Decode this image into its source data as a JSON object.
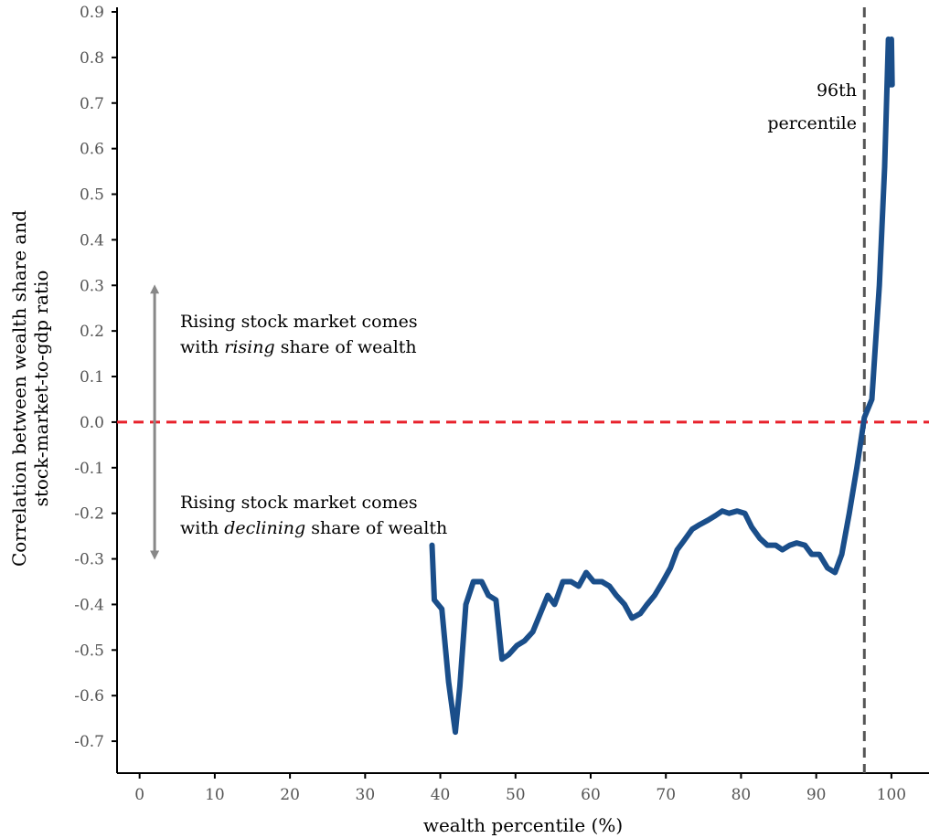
{
  "chart_data": {
    "type": "line",
    "xlabel": "wealth percentile (%)",
    "ylabel_lines": [
      "Correlation between wealth share and",
      "stock-market-to-gdp ratio"
    ],
    "xlim": [
      -3,
      105
    ],
    "ylim": [
      -0.77,
      0.91
    ],
    "x_ticks": [
      0,
      10,
      20,
      30,
      40,
      50,
      60,
      70,
      80,
      90,
      100
    ],
    "y_ticks": [
      0.9,
      0.8,
      0.7,
      0.6,
      0.5,
      0.4,
      0.3,
      0.2,
      0.1,
      0.0,
      -0.1,
      -0.2,
      -0.3,
      -0.4,
      -0.5,
      -0.6,
      -0.7
    ],
    "y_tick_labels": [
      "0.9",
      "0.8",
      "0.7",
      "0.6",
      "0.5",
      "0.4",
      "0.3",
      "0.2",
      "0.1",
      "0.0",
      "-0.1",
      "-0.2",
      "-0.3",
      "-0.4",
      "-0.5",
      "-0.6",
      "-0.7"
    ],
    "series": [
      {
        "color": "#1a4e8a",
        "x": [
          38.9,
          39.2,
          40.2,
          41.1,
          42.0,
          42.6,
          43.4,
          44.4,
          45.5,
          46.4,
          47.4,
          48.2,
          49.1,
          50.2,
          51.2,
          52.3,
          53.3,
          54.3,
          55.2,
          56.3,
          57.4,
          58.4,
          59.4,
          60.4,
          61.5,
          62.5,
          63.4,
          64.5,
          65.5,
          66.6,
          67.5,
          68.5,
          69.6,
          70.6,
          71.5,
          72.4,
          73.5,
          74.5,
          75.6,
          76.6,
          77.5,
          78.4,
          79.5,
          80.5,
          81.4,
          82.5,
          83.5,
          84.6,
          85.5,
          86.5,
          87.4,
          88.5,
          89.4,
          90.4,
          91.5,
          92.5,
          93.4,
          94.4,
          95.4,
          96.4,
          97.4,
          98.4,
          99.1,
          99.6,
          99.8,
          100.0,
          100.1
        ],
        "y": [
          -0.27,
          -0.39,
          -0.41,
          -0.57,
          -0.68,
          -0.58,
          -0.4,
          -0.35,
          -0.35,
          -0.38,
          -0.39,
          -0.52,
          -0.51,
          -0.49,
          -0.48,
          -0.46,
          -0.42,
          -0.38,
          -0.4,
          -0.35,
          -0.35,
          -0.36,
          -0.33,
          -0.35,
          -0.35,
          -0.36,
          -0.38,
          -0.4,
          -0.43,
          -0.42,
          -0.4,
          -0.38,
          -0.35,
          -0.32,
          -0.28,
          -0.26,
          -0.235,
          -0.225,
          -0.215,
          -0.205,
          -0.195,
          -0.2,
          -0.195,
          -0.2,
          -0.23,
          -0.255,
          -0.27,
          -0.27,
          -0.28,
          -0.27,
          -0.265,
          -0.27,
          -0.29,
          -0.29,
          -0.32,
          -0.33,
          -0.29,
          -0.2,
          -0.1,
          0.01,
          0.05,
          0.3,
          0.56,
          0.84,
          0.74,
          0.84,
          0.74
        ]
      }
    ],
    "zero_line": {
      "y": 0.0,
      "color": "#e8212b",
      "style": "dashed"
    },
    "threshold_line": {
      "x": 96.4,
      "color": "#555555",
      "style": "dashed"
    },
    "annotations": {
      "threshold_label": [
        "96th",
        "percentile"
      ],
      "rising_line1": "Rising stock market comes",
      "rising_line2_pre": "with ",
      "rising_line2_em": "rising",
      "rising_line2_post": " share of wealth",
      "declining_line1": "Rising stock market comes",
      "declining_line2_pre": "with ",
      "declining_line2_em": "declining",
      "declining_line2_post": " share of wealth"
    },
    "arrow_range": [
      -0.3,
      0.3
    ],
    "grid": false
  }
}
